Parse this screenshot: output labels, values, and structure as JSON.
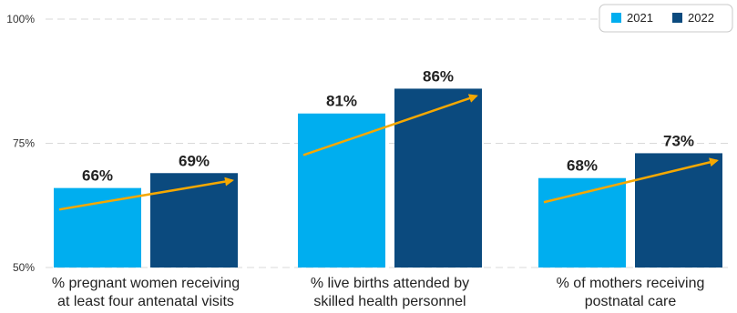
{
  "chart_data": {
    "type": "bar",
    "categories": [
      [
        "% pregnant women receiving",
        "at least four antenatal visits"
      ],
      [
        "% live births attended by",
        "skilled health personnel"
      ],
      [
        "% of mothers receiving",
        "postnatal care"
      ]
    ],
    "series": [
      {
        "name": "2021",
        "values": [
          66,
          81,
          68
        ],
        "labels": [
          "66%",
          "81%",
          "68%"
        ],
        "color": "#00aeef"
      },
      {
        "name": "2022",
        "values": [
          69,
          86,
          73
        ],
        "labels": [
          "69%",
          "86%",
          "73%"
        ],
        "color": "#0b4a7e"
      }
    ],
    "y_ticks": [
      {
        "value": 50,
        "label": "50%"
      },
      {
        "value": 75,
        "label": "75%"
      },
      {
        "value": 100,
        "label": "100%"
      }
    ],
    "ylim": [
      50,
      100
    ],
    "grid": "dashed-horizontal",
    "legend_position": "top-right",
    "trend_arrow_color": "#f5a800",
    "title": "",
    "xlabel": "",
    "ylabel": ""
  }
}
